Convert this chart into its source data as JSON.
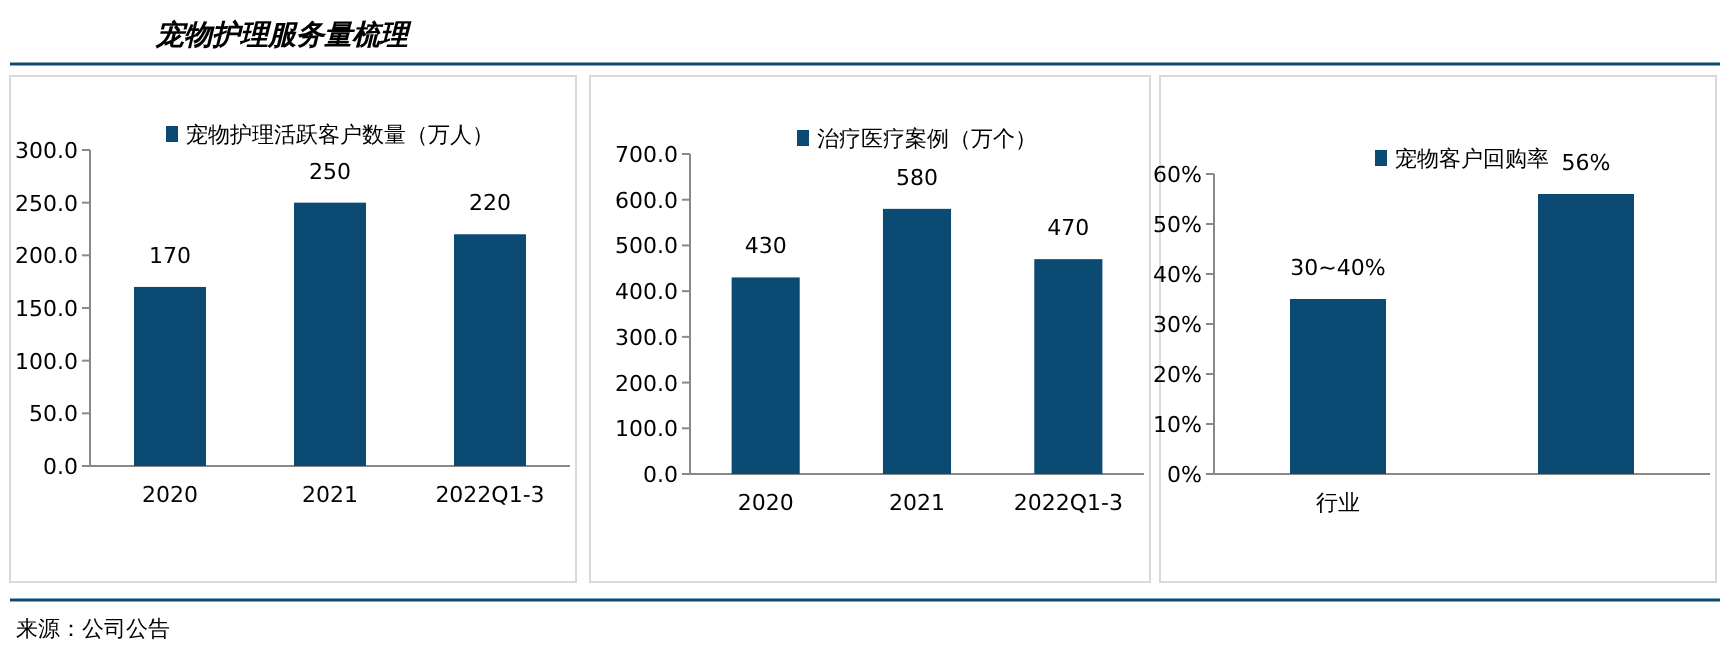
{
  "chart_data": [
    {
      "type": "other",
      "title": "宠物护理服务量梳理",
      "annotations": [
        "来源：公司公告"
      ]
    },
    {
      "type": "bar",
      "categories": [
        "2020",
        "2021",
        "2022Q1-3"
      ],
      "series": [
        {
          "name": "宠物护理活跃客户数量（万人）",
          "color": "#0b4a72",
          "values": [
            170,
            250,
            220
          ]
        }
      ],
      "ylim": [
        0,
        300
      ],
      "yticks": [
        {
          "value": 0,
          "label": "0.0"
        },
        {
          "value": 50,
          "label": "50.0"
        },
        {
          "value": 100,
          "label": "100.0"
        },
        {
          "value": 150,
          "label": "150.0"
        },
        {
          "value": 200,
          "label": "200.0"
        },
        {
          "value": 250,
          "label": "250.0"
        },
        {
          "value": 300,
          "label": "300.0"
        }
      ],
      "data_labels": true,
      "legend": "top",
      "grid": false
    },
    {
      "type": "bar",
      "categories": [
        "2020",
        "2021",
        "2022Q1-3"
      ],
      "series": [
        {
          "name": "治疗医疗案例（万个）",
          "color": "#0b4a72",
          "values": [
            430,
            580,
            470
          ]
        }
      ],
      "ylim": [
        0,
        700
      ],
      "yticks": [
        {
          "value": 0,
          "label": "0.0"
        },
        {
          "value": 100,
          "label": "100.0"
        },
        {
          "value": 200,
          "label": "200.0"
        },
        {
          "value": 300,
          "label": "300.0"
        },
        {
          "value": 400,
          "label": "400.0"
        },
        {
          "value": 500,
          "label": "500.0"
        },
        {
          "value": 600,
          "label": "600.0"
        },
        {
          "value": 700,
          "label": "700.0"
        }
      ],
      "data_labels": true,
      "legend": "top",
      "grid": false
    },
    {
      "type": "bar",
      "categories": [
        "行业",
        null
      ],
      "series": [
        {
          "name": "宠物客户回购率",
          "color": "#0b4a72",
          "values": [
            35,
            56
          ],
          "value_labels": [
            null,
            "56%"
          ]
        }
      ],
      "annotations": [
        {
          "text": "30~40%",
          "x": "行业",
          "y": 35
        }
      ],
      "ylim": [
        0,
        60
      ],
      "yticks": [
        {
          "value": 0,
          "label": "0%"
        },
        {
          "value": 10,
          "label": "10%"
        },
        {
          "value": 20,
          "label": "20%"
        },
        {
          "value": 30,
          "label": "30%"
        },
        {
          "value": 40,
          "label": "40%"
        },
        {
          "value": 50,
          "label": "50%"
        },
        {
          "value": 60,
          "label": "60%"
        }
      ],
      "legend": "top",
      "grid": false
    }
  ]
}
